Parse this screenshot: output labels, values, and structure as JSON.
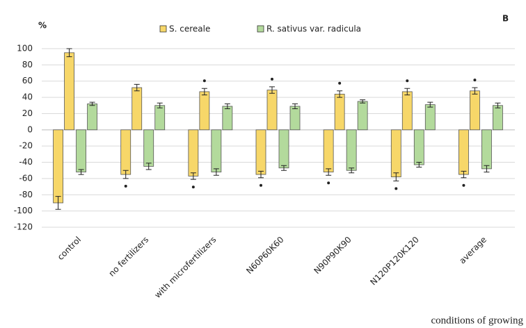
{
  "chart_data": {
    "type": "bar",
    "y_label": "%",
    "panel_label": "B",
    "x_label": "conditions  of growing",
    "categories": [
      "control",
      "no fertilizers",
      "with microfertilizers",
      "N60P60K60",
      "N90P90K90",
      "N120P120K120",
      "average"
    ],
    "series": [
      {
        "name": "S. cereale",
        "color": "#f7d769",
        "values": [
          95,
          52,
          47,
          49,
          44,
          47,
          48
        ],
        "errors": [
          5,
          4,
          4,
          4,
          4,
          4,
          4
        ],
        "negative_values": [
          -90,
          -55,
          -57,
          -55,
          -52,
          -58,
          -55
        ],
        "negative_errors": [
          8,
          5,
          4,
          4,
          4,
          5,
          4
        ],
        "significant": [
          false,
          false,
          true,
          true,
          true,
          true,
          true
        ],
        "negative_significant": [
          false,
          true,
          true,
          true,
          true,
          true,
          true
        ]
      },
      {
        "name": "R. sativus var. radicula",
        "color": "#b3da9c",
        "values": [
          32,
          30,
          29,
          29,
          35,
          31,
          30
        ],
        "errors": [
          2,
          3,
          3,
          3,
          2,
          3,
          3
        ],
        "negative_values": [
          -52,
          -45,
          -52,
          -47,
          -50,
          -43,
          -48
        ],
        "negative_errors": [
          3,
          4,
          4,
          3,
          3,
          3,
          4
        ],
        "significant": [
          false,
          false,
          false,
          false,
          false,
          false,
          false
        ],
        "negative_significant": [
          false,
          false,
          false,
          false,
          false,
          false,
          false
        ]
      }
    ],
    "ylim": [
      -120,
      100
    ],
    "yticks": [
      -120,
      -100,
      -80,
      -60,
      -40,
      -20,
      0,
      20,
      40,
      60,
      80,
      100
    ],
    "grid": true
  }
}
